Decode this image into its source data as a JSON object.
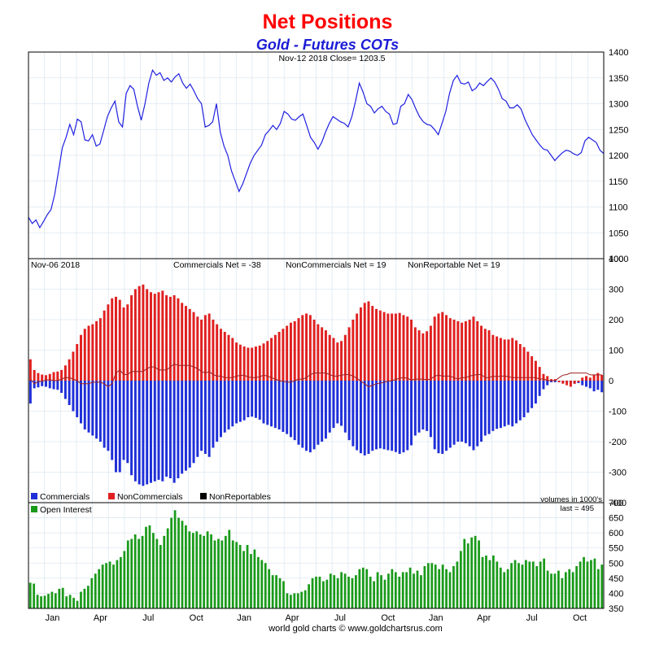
{
  "title": "Net Positions",
  "subtitle": "Gold - Futures COTs",
  "footer": "world gold charts © www.goldchartsrus.com",
  "colors": {
    "price": "#2020e0",
    "commercials": "#1f2fd8",
    "noncommercials": "#e02020",
    "nonreportables": "#000000",
    "open_interest": "#1a9a1a",
    "grid": "#dde8f0",
    "title": "#ff0000",
    "subtitle": "#1c1cd6"
  },
  "months_axis": [
    "Jan",
    "Apr",
    "Jul",
    "Oct",
    "Jan",
    "Apr",
    "Jul",
    "Oct",
    "Jan",
    "Apr",
    "Jul",
    "Oct"
  ],
  "chart_data": [
    {
      "type": "line",
      "name": "price",
      "info": "Nov-12  2018   Close= 1203.5",
      "ylim": [
        1000,
        1400
      ],
      "yticks": [
        1000,
        1050,
        1100,
        1150,
        1200,
        1250,
        1300,
        1350,
        1400
      ],
      "grid": true,
      "values": [
        1080,
        1068,
        1075,
        1060,
        1072,
        1085,
        1095,
        1125,
        1170,
        1215,
        1235,
        1260,
        1240,
        1270,
        1265,
        1230,
        1228,
        1240,
        1218,
        1222,
        1248,
        1275,
        1292,
        1305,
        1265,
        1255,
        1320,
        1335,
        1328,
        1295,
        1268,
        1300,
        1340,
        1365,
        1355,
        1360,
        1345,
        1350,
        1342,
        1352,
        1358,
        1340,
        1330,
        1338,
        1325,
        1310,
        1300,
        1255,
        1258,
        1265,
        1300,
        1245,
        1218,
        1200,
        1170,
        1150,
        1130,
        1145,
        1165,
        1185,
        1200,
        1210,
        1220,
        1240,
        1248,
        1258,
        1250,
        1262,
        1285,
        1280,
        1270,
        1268,
        1275,
        1280,
        1258,
        1235,
        1225,
        1212,
        1225,
        1245,
        1262,
        1275,
        1270,
        1265,
        1262,
        1255,
        1275,
        1305,
        1340,
        1322,
        1300,
        1295,
        1282,
        1290,
        1295,
        1285,
        1280,
        1260,
        1262,
        1295,
        1300,
        1318,
        1308,
        1290,
        1275,
        1265,
        1260,
        1258,
        1250,
        1240,
        1262,
        1285,
        1320,
        1345,
        1355,
        1340,
        1338,
        1342,
        1325,
        1330,
        1340,
        1335,
        1343,
        1350,
        1342,
        1328,
        1310,
        1305,
        1292,
        1292,
        1298,
        1290,
        1270,
        1255,
        1240,
        1230,
        1220,
        1212,
        1210,
        1200,
        1190,
        1198,
        1205,
        1210,
        1208,
        1203,
        1200,
        1205,
        1228,
        1235,
        1230,
        1225,
        1210,
        1203.5
      ]
    },
    {
      "type": "bar",
      "name": "net_positions",
      "info": {
        "date": "Nov-06  2018",
        "commercials": "Commercials Net = -38",
        "noncommercials": "NonCommercials Net = 19",
        "nonreportables": "NonReportable Net = 19"
      },
      "ylim": [
        -400,
        400
      ],
      "yticks": [
        -400,
        -300,
        -200,
        -100,
        0,
        100,
        200,
        300,
        400
      ],
      "legend": [
        "Commercials",
        "NonCommercials",
        "NonReportables"
      ],
      "unit_note": "volumes in 1000's",
      "series": [
        {
          "name": "Commercials",
          "values": [
            -75,
            -25,
            -22,
            -18,
            -20,
            -25,
            -28,
            -30,
            -40,
            -60,
            -80,
            -100,
            -120,
            -140,
            -160,
            -170,
            -180,
            -190,
            -200,
            -220,
            -230,
            -260,
            -300,
            -300,
            -260,
            -270,
            -310,
            -330,
            -340,
            -345,
            -340,
            -335,
            -330,
            -325,
            -330,
            -315,
            -320,
            -335,
            -320,
            -305,
            -295,
            -285,
            -270,
            -250,
            -230,
            -240,
            -250,
            -220,
            -200,
            -185,
            -170,
            -160,
            -150,
            -140,
            -135,
            -130,
            -120,
            -118,
            -122,
            -128,
            -140,
            -145,
            -150,
            -155,
            -160,
            -168,
            -175,
            -185,
            -195,
            -210,
            -220,
            -230,
            -235,
            -225,
            -210,
            -200,
            -190,
            -170,
            -155,
            -140,
            -148,
            -170,
            -195,
            -215,
            -228,
            -238,
            -245,
            -240,
            -230,
            -225,
            -222,
            -225,
            -228,
            -230,
            -234,
            -240,
            -235,
            -228,
            -212,
            -180,
            -170,
            -160,
            -165,
            -185,
            -225,
            -238,
            -240,
            -230,
            -220,
            -210,
            -200,
            -200,
            -205,
            -215,
            -228,
            -215,
            -200,
            -180,
            -175,
            -165,
            -158,
            -155,
            -150,
            -145,
            -150,
            -140,
            -130,
            -120,
            -105,
            -90,
            -75,
            -50,
            -28,
            -15,
            -5,
            -5,
            -5,
            -8,
            -5,
            -5,
            -10,
            -8,
            -15,
            -20,
            -25,
            -35,
            -30,
            -38
          ]
        },
        {
          "name": "NonCommercials",
          "values": [
            70,
            35,
            25,
            20,
            18,
            22,
            28,
            30,
            35,
            50,
            70,
            95,
            120,
            150,
            170,
            180,
            185,
            195,
            205,
            230,
            250,
            270,
            275,
            265,
            240,
            250,
            280,
            300,
            310,
            315,
            300,
            290,
            285,
            290,
            295,
            280,
            275,
            280,
            270,
            255,
            245,
            235,
            225,
            210,
            200,
            215,
            220,
            200,
            185,
            170,
            160,
            150,
            140,
            125,
            118,
            112,
            108,
            108,
            112,
            115,
            122,
            130,
            140,
            150,
            160,
            170,
            180,
            190,
            195,
            205,
            215,
            220,
            215,
            200,
            185,
            175,
            165,
            150,
            140,
            125,
            130,
            150,
            175,
            200,
            220,
            240,
            255,
            260,
            245,
            235,
            230,
            225,
            220,
            220,
            220,
            222,
            215,
            210,
            200,
            175,
            165,
            155,
            162,
            180,
            210,
            220,
            225,
            215,
            205,
            200,
            195,
            190,
            195,
            200,
            210,
            195,
            180,
            170,
            165,
            150,
            145,
            140,
            135,
            135,
            140,
            132,
            120,
            110,
            95,
            80,
            65,
            45,
            22,
            15,
            5,
            5,
            -5,
            -10,
            -15,
            -20,
            -10,
            -5,
            10,
            15,
            10,
            20,
            25,
            19
          ]
        },
        {
          "name": "NonReportables",
          "values": [
            5,
            -10,
            -3,
            -2,
            2,
            3,
            0,
            0,
            5,
            10,
            10,
            5,
            0,
            -10,
            -10,
            -10,
            -5,
            -5,
            -5,
            -10,
            -20,
            -10,
            25,
            35,
            20,
            20,
            30,
            30,
            30,
            30,
            40,
            45,
            45,
            35,
            35,
            35,
            45,
            55,
            50,
            50,
            50,
            50,
            45,
            40,
            30,
            25,
            30,
            20,
            15,
            15,
            10,
            10,
            10,
            15,
            17,
            18,
            12,
            10,
            10,
            13,
            18,
            15,
            10,
            5,
            0,
            -2,
            -5,
            -5,
            0,
            5,
            5,
            10,
            20,
            25,
            25,
            25,
            25,
            20,
            15,
            15,
            18,
            20,
            20,
            15,
            8,
            -2,
            -10,
            -20,
            -15,
            -10,
            -8,
            -5,
            -2,
            0,
            4,
            8,
            10,
            8,
            2,
            5,
            5,
            5,
            3,
            5,
            15,
            18,
            15,
            15,
            15,
            10,
            5,
            10,
            10,
            15,
            18,
            20,
            20,
            10,
            10,
            15,
            13,
            15,
            15,
            13,
            10,
            10,
            10,
            10,
            10,
            10,
            10,
            5,
            6,
            0,
            0,
            0,
            10,
            18,
            20,
            25,
            25,
            25,
            25,
            25,
            19,
            19,
            19,
            19
          ]
        }
      ]
    },
    {
      "type": "bar",
      "name": "open_interest",
      "legend": [
        "Open Interest"
      ],
      "last_label": "last = 495",
      "ylim": [
        350,
        700
      ],
      "yticks": [
        350,
        400,
        450,
        500,
        550,
        600,
        650,
        700
      ],
      "values": [
        435,
        432,
        395,
        390,
        392,
        398,
        405,
        400,
        415,
        418,
        390,
        395,
        385,
        375,
        405,
        415,
        425,
        450,
        465,
        480,
        495,
        500,
        505,
        495,
        510,
        520,
        540,
        575,
        580,
        595,
        580,
        590,
        620,
        625,
        600,
        580,
        560,
        590,
        615,
        650,
        675,
        650,
        640,
        625,
        605,
        600,
        605,
        595,
        590,
        605,
        595,
        575,
        580,
        575,
        590,
        610,
        575,
        570,
        560,
        540,
        560,
        530,
        545,
        520,
        510,
        500,
        480,
        460,
        460,
        450,
        440,
        400,
        395,
        400,
        400,
        405,
        410,
        430,
        450,
        455,
        455,
        440,
        445,
        465,
        460,
        450,
        470,
        465,
        455,
        450,
        460,
        480,
        485,
        480,
        455,
        440,
        470,
        460,
        445,
        465,
        480,
        470,
        455,
        470,
        470,
        485,
        465,
        475,
        460,
        490,
        500,
        500,
        495,
        480,
        495,
        480,
        470,
        490,
        505,
        540,
        580,
        565,
        585,
        590,
        575,
        520,
        525,
        510,
        525,
        505,
        485,
        470,
        480,
        500,
        510,
        500,
        495,
        510,
        505,
        505,
        490,
        505,
        515,
        475,
        465,
        465,
        475,
        450,
        470,
        480,
        470,
        490,
        505,
        520,
        505,
        510,
        515,
        480,
        495
      ]
    }
  ]
}
